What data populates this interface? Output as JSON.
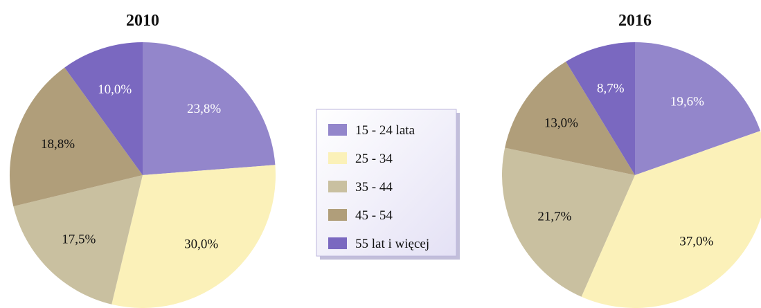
{
  "chart_data": {
    "type": "pie",
    "legend_position": "center",
    "categories": [
      "15 - 24 lata",
      "25 - 34",
      "35 - 44",
      "45 - 54",
      "55 lat i więcej"
    ],
    "colors": [
      "#9386cb",
      "#fbf1b9",
      "#c9c0a0",
      "#b09e7a",
      "#7a68c0"
    ],
    "label_colors": [
      "#ffffff",
      "#111111",
      "#111111",
      "#111111",
      "#ffffff"
    ],
    "series": [
      {
        "title": "2010",
        "values": [
          23.8,
          30.0,
          17.5,
          18.8,
          10.0
        ],
        "labels": [
          "23,8%",
          "30,0%",
          "17,5%",
          "18,8%",
          "10,0%"
        ]
      },
      {
        "title": "2016",
        "values": [
          19.6,
          37.0,
          21.7,
          13.0,
          8.7
        ],
        "labels": [
          "19,6%",
          "37,0%",
          "21,7%",
          "13,0%",
          "8,7%"
        ]
      }
    ]
  }
}
